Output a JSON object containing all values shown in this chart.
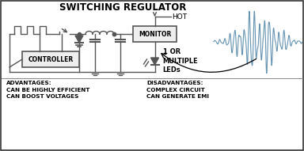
{
  "title": "SWITCHING REGULATOR",
  "bg_color": "#ffffff",
  "line_color": "#555555",
  "wave_color": "#5588aa",
  "advantages_text": "ADVANTAGES:\nCAN BE HIGHLY EFFICIENT\nCAN BOOST VOLTAGES",
  "disadvantages_text": "DISADVANTAGES:\nCOMPLEX CIRCUIT\nCAN GENERATE EMI",
  "hot_label": "HOT",
  "led_label": "1 OR\nMULTIPLE\nLEDs",
  "controller_label": "CONTROLLER",
  "monitor_label": "MONITOR",
  "fig_w": 3.84,
  "fig_h": 1.91,
  "dpi": 100
}
